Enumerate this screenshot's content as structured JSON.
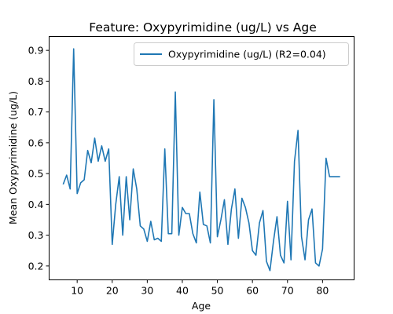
{
  "chart_data": {
    "type": "line",
    "title": "Feature: Oxypyrimidine (ug/L) vs Age",
    "xlabel": "Age",
    "ylabel": "Mean Oxypyrimidine (ug/L)",
    "xlim": [
      2,
      89
    ],
    "ylim": [
      0.155,
      0.945
    ],
    "xticks": [
      10,
      20,
      30,
      40,
      50,
      60,
      70,
      80
    ],
    "yticks": [
      0.2,
      0.3,
      0.4,
      0.5,
      0.6,
      0.7,
      0.8,
      0.9
    ],
    "grid": false,
    "legend_position": "top-right",
    "color": "#1f77b4",
    "series": [
      {
        "name": "Oxypyrimidine (ug/L) (R2=0.04)",
        "x": [
          6,
          7,
          8,
          9,
          10,
          11,
          12,
          13,
          14,
          15,
          16,
          17,
          18,
          19,
          20,
          21,
          22,
          23,
          24,
          25,
          26,
          27,
          28,
          29,
          30,
          31,
          32,
          33,
          34,
          35,
          36,
          37,
          38,
          39,
          40,
          41,
          42,
          43,
          44,
          45,
          46,
          47,
          48,
          49,
          50,
          51,
          52,
          53,
          54,
          55,
          56,
          57,
          58,
          59,
          60,
          61,
          62,
          63,
          64,
          65,
          66,
          67,
          68,
          69,
          70,
          71,
          72,
          73,
          74,
          75,
          76,
          77,
          78,
          79,
          80,
          81,
          82,
          83,
          84,
          85
        ],
        "y": [
          0.465,
          0.495,
          0.45,
          0.905,
          0.435,
          0.47,
          0.48,
          0.575,
          0.535,
          0.615,
          0.54,
          0.59,
          0.54,
          0.58,
          0.27,
          0.4,
          0.49,
          0.3,
          0.49,
          0.35,
          0.515,
          0.45,
          0.33,
          0.32,
          0.28,
          0.345,
          0.285,
          0.29,
          0.28,
          0.58,
          0.305,
          0.305,
          0.765,
          0.3,
          0.39,
          0.37,
          0.37,
          0.305,
          0.275,
          0.44,
          0.335,
          0.33,
          0.275,
          0.74,
          0.295,
          0.35,
          0.415,
          0.27,
          0.385,
          0.45,
          0.29,
          0.42,
          0.39,
          0.34,
          0.25,
          0.235,
          0.34,
          0.38,
          0.215,
          0.185,
          0.28,
          0.36,
          0.235,
          0.21,
          0.41,
          0.22,
          0.54,
          0.64,
          0.295,
          0.22,
          0.35,
          0.385,
          0.21,
          0.2,
          0.255,
          0.55,
          0.49,
          0.49,
          0.49,
          0.49
        ]
      }
    ]
  }
}
